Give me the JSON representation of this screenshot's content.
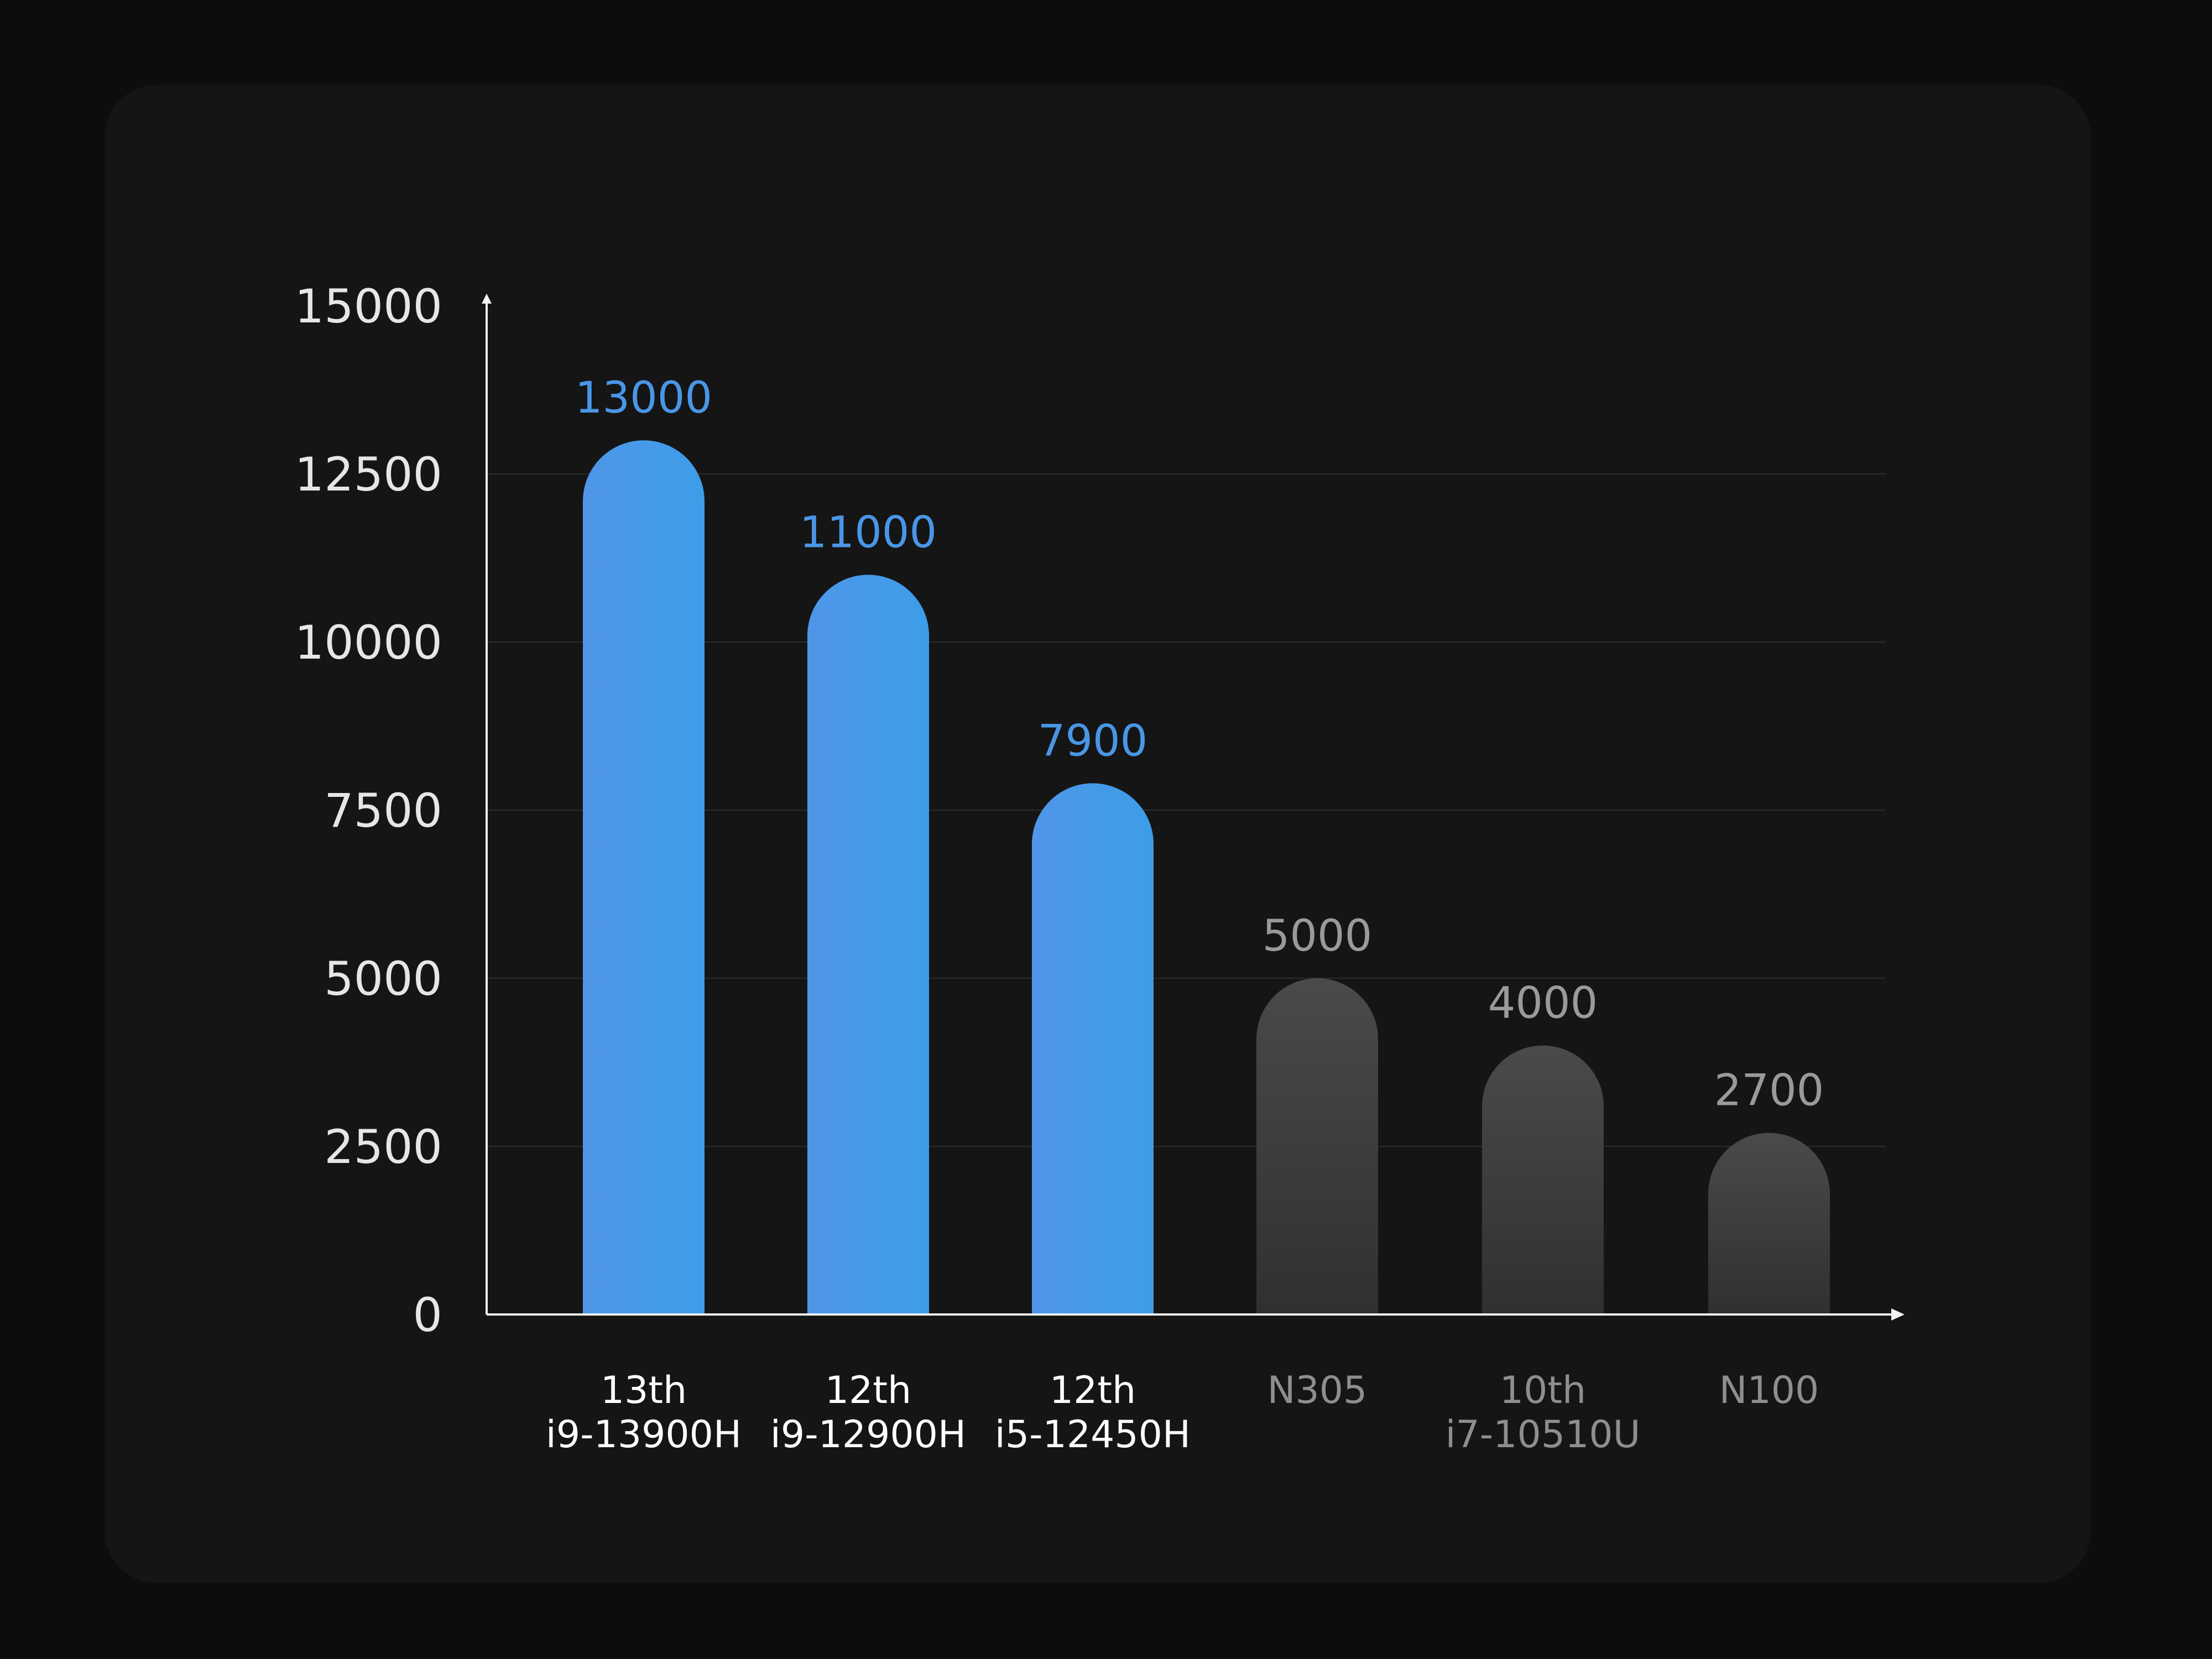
{
  "chart_data": {
    "type": "bar",
    "title": "",
    "xlabel": "",
    "ylabel": "",
    "ylim": [
      0,
      15000
    ],
    "yticks": [
      0,
      2500,
      5000,
      7500,
      10000,
      12500,
      15000
    ],
    "grid": true,
    "categories": [
      {
        "line1": "13th",
        "line2": "i9-13900H",
        "highlight": true
      },
      {
        "line1": "12th",
        "line2": "i9-12900H",
        "highlight": true
      },
      {
        "line1": "12th",
        "line2": "i5-12450H",
        "highlight": true
      },
      {
        "line1": "N305",
        "line2": "",
        "highlight": false
      },
      {
        "line1": "10th",
        "line2": "i7-10510U",
        "highlight": false
      },
      {
        "line1": "N100",
        "line2": "",
        "highlight": false
      }
    ],
    "values": [
      13000,
      11000,
      7900,
      5000,
      4000,
      2700
    ],
    "value_labels": [
      "13000",
      "11000",
      "7900",
      "5000",
      "4000",
      "2700"
    ]
  },
  "colors": {
    "highlight_bar_top": "#4f97e8",
    "highlight_bar_bottom": "#3d9ee8",
    "highlight_label": "#4a96e6",
    "muted_bar_top": "#4a4a4b",
    "muted_bar_bottom": "#323233",
    "muted_label": "#9a9a9a",
    "axis": "#f2f2f2",
    "tick_label": "#e6e6e6",
    "grid": "#2c2c2d",
    "category_highlight": "#ffffff",
    "category_muted": "#8e8e8e"
  }
}
